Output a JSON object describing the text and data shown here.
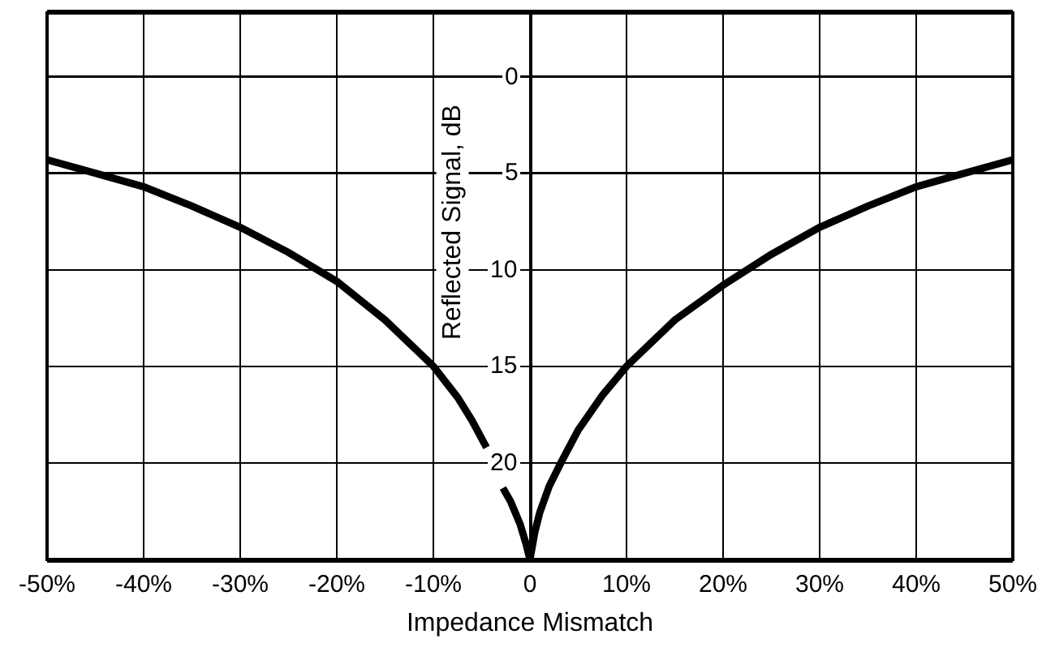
{
  "chart_data": {
    "type": "line",
    "xlabel": "Impedance Mismatch",
    "ylabel": "Reflected Signal, dB",
    "x": [
      -50,
      -45,
      -40,
      -35,
      -30,
      -25,
      -20,
      -15,
      -10,
      -7.5,
      -6,
      -4.5,
      -3.6,
      -2.8,
      -2,
      -1,
      -0.4,
      0,
      0.5,
      1,
      2,
      3.2,
      5,
      7.5,
      10,
      15,
      20,
      25,
      30,
      35,
      40,
      45,
      50
    ],
    "series": [
      {
        "color": "#000000",
        "values": [
          4.3,
          5.0,
          5.7,
          6.7,
          7.8,
          9.1,
          10.6,
          12.6,
          15.0,
          16.6,
          17.8,
          19.2,
          null,
          21.3,
          22.0,
          23.2,
          24.2,
          25,
          23.6,
          22.6,
          21.2,
          20.0,
          18.3,
          16.5,
          15.0,
          12.6,
          10.8,
          9.2,
          7.8,
          6.7,
          5.7,
          5.0,
          4.3
        ]
      }
    ],
    "xlim": [
      -50,
      50
    ],
    "xticks": [
      {
        "value": -50,
        "label": "-50%"
      },
      {
        "value": -40,
        "label": "-40%"
      },
      {
        "value": -30,
        "label": "-30%"
      },
      {
        "value": -20,
        "label": "-20%"
      },
      {
        "value": -10,
        "label": "-10%"
      },
      0,
      {
        "value": 10,
        "label": "10%"
      },
      {
        "value": 20,
        "label": "20%"
      },
      {
        "value": 30,
        "label": "30%"
      },
      {
        "value": 40,
        "label": "40%"
      },
      {
        "value": 50,
        "label": "50%"
      }
    ],
    "ylim": [
      25,
      -3.3
    ],
    "yticks": [
      0,
      5,
      10,
      15,
      20
    ],
    "grid": true,
    "line_style": "solid"
  }
}
